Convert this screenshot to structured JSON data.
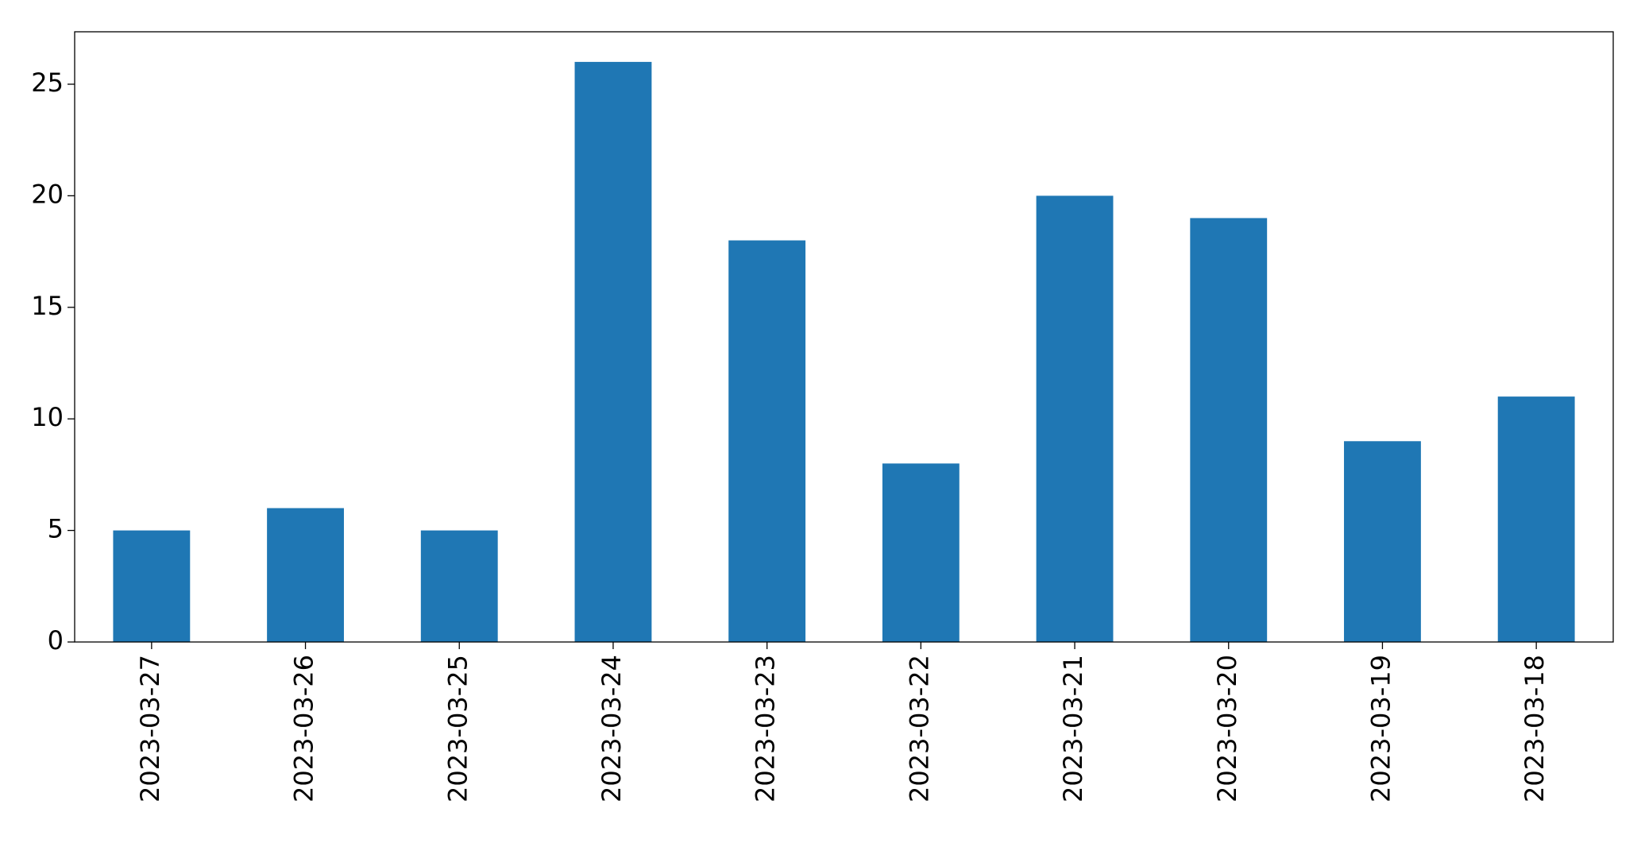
{
  "chart_data": {
    "type": "bar",
    "categories": [
      "2023-03-27",
      "2023-03-26",
      "2023-03-25",
      "2023-03-24",
      "2023-03-23",
      "2023-03-22",
      "2023-03-21",
      "2023-03-20",
      "2023-03-19",
      "2023-03-18"
    ],
    "values": [
      5,
      6,
      5,
      26,
      18,
      8,
      20,
      19,
      9,
      11
    ],
    "color": "#1f77b4",
    "ylim": [
      0,
      27.35
    ],
    "yticks": [
      0,
      5,
      10,
      15,
      20,
      25
    ],
    "grid": false
  }
}
